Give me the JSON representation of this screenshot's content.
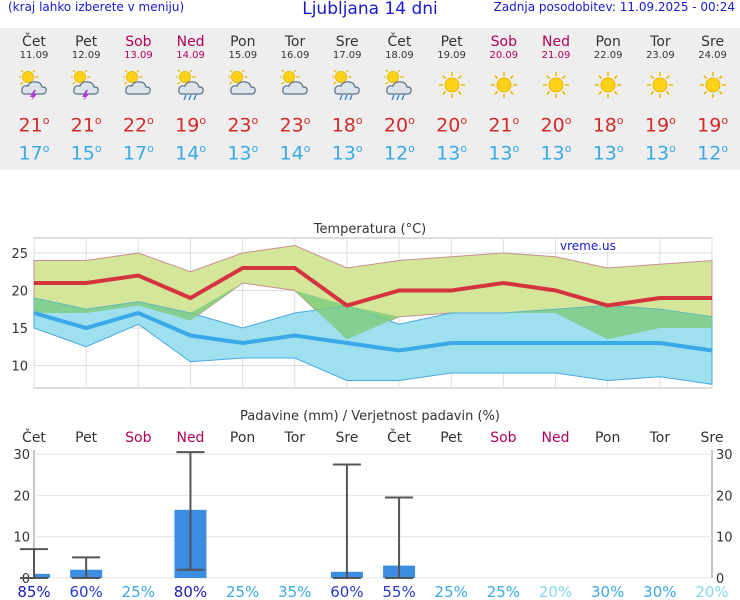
{
  "header": {
    "left": "(kraj lahko izberete v meniju)",
    "title": "Ljubljana 14 dni",
    "right": "Zadnja posodobitev: 11.09.2025 - 00:24"
  },
  "days": [
    {
      "name": "Čet",
      "date": "11.09",
      "icon": "thunderstorm-sun-icon",
      "tmax": "21",
      "tmin": "17",
      "weekend": false
    },
    {
      "name": "Pet",
      "date": "12.09",
      "icon": "thunderstorm-sun-icon",
      "tmax": "21",
      "tmin": "15",
      "weekend": false
    },
    {
      "name": "Sob",
      "date": "13.09",
      "icon": "partly-cloudy-icon",
      "tmax": "22",
      "tmin": "17",
      "weekend": true
    },
    {
      "name": "Ned",
      "date": "14.09",
      "icon": "rain-sun-icon",
      "tmax": "19",
      "tmin": "14",
      "weekend": true
    },
    {
      "name": "Pon",
      "date": "15.09",
      "icon": "partly-cloudy-icon",
      "tmax": "23",
      "tmin": "13",
      "weekend": false
    },
    {
      "name": "Tor",
      "date": "16.09",
      "icon": "partly-cloudy-icon",
      "tmax": "23",
      "tmin": "14",
      "weekend": false
    },
    {
      "name": "Sre",
      "date": "17.09",
      "icon": "rain-sun-icon",
      "tmax": "18",
      "tmin": "13",
      "weekend": false
    },
    {
      "name": "Čet",
      "date": "18.09",
      "icon": "rain-sun-icon",
      "tmax": "20",
      "tmin": "12",
      "weekend": false
    },
    {
      "name": "Pet",
      "date": "19.09",
      "icon": "sun-icon",
      "tmax": "20",
      "tmin": "13",
      "weekend": false
    },
    {
      "name": "Sob",
      "date": "20.09",
      "icon": "sun-icon",
      "tmax": "21",
      "tmin": "13",
      "weekend": true
    },
    {
      "name": "Ned",
      "date": "21.09",
      "icon": "sun-icon",
      "tmax": "20",
      "tmin": "13",
      "weekend": true
    },
    {
      "name": "Pon",
      "date": "22.09",
      "icon": "sun-icon",
      "tmax": "18",
      "tmin": "13",
      "weekend": false
    },
    {
      "name": "Tor",
      "date": "23.09",
      "icon": "sun-icon",
      "tmax": "19",
      "tmin": "13",
      "weekend": false
    },
    {
      "name": "Sre",
      "date": "24.09",
      "icon": "sun-icon",
      "tmax": "19",
      "tmin": "12",
      "weekend": false
    }
  ],
  "colors": {
    "tmax": "#d63341",
    "tmin": "#3aa9e8",
    "weekend": "#b0005a",
    "bar": "#3a8de0",
    "maxBand": "#d4e69a",
    "minBand": "#9fe0ef",
    "overlap": "#7ccc7a"
  },
  "chart_data": [
    {
      "type": "line",
      "title": "Temperatura (°C)",
      "watermark": "vreme.us",
      "ylim": [
        7,
        27
      ],
      "yticks": [
        "10",
        "15",
        "20",
        "25"
      ],
      "series": [
        {
          "name": "Tmax",
          "values": [
            21,
            21,
            22,
            19,
            23,
            23,
            18,
            20,
            20,
            21,
            20,
            18,
            19,
            19
          ]
        },
        {
          "name": "Tmin",
          "values": [
            17,
            15,
            17,
            14,
            13,
            14,
            13,
            12,
            13,
            13,
            13,
            13,
            13,
            12
          ]
        }
      ],
      "bands": [
        {
          "name": "Tmax range",
          "lower": [
            17,
            17,
            18,
            16,
            21,
            20,
            13.5,
            16.5,
            17,
            17,
            17,
            13.5,
            15,
            15
          ],
          "upper": [
            24,
            24,
            25,
            22.5,
            25,
            26,
            23,
            24,
            24.5,
            25,
            24.5,
            23,
            23.5,
            24
          ]
        },
        {
          "name": "Tmin range",
          "lower": [
            15,
            12.5,
            15.5,
            10.5,
            11,
            11,
            8,
            8,
            9,
            9,
            9,
            8,
            8.5,
            7.5
          ],
          "upper": [
            19,
            17.5,
            18.5,
            17,
            15,
            17,
            18,
            15.5,
            17,
            17,
            17.5,
            18,
            17.5,
            16.5
          ]
        }
      ]
    },
    {
      "type": "bar",
      "title": "Padavine (mm) / Verjetnost padavin (%)",
      "categories": [
        "Čet",
        "Pet",
        "Sob",
        "Ned",
        "Pon",
        "Tor",
        "Sre",
        "Čet",
        "Pet",
        "Sob",
        "Ned",
        "Pon",
        "Tor",
        "Sre"
      ],
      "weekend": [
        false,
        false,
        true,
        true,
        false,
        false,
        false,
        false,
        false,
        true,
        true,
        false,
        false,
        false
      ],
      "ylim": [
        0,
        31
      ],
      "yticks": [
        "0",
        "10",
        "20",
        "30"
      ],
      "values": [
        1.0,
        2.0,
        0,
        16.5,
        0,
        0,
        1.5,
        3.0,
        0,
        0,
        0,
        0,
        0,
        0
      ],
      "error_low": [
        0,
        0,
        0,
        2.0,
        0,
        0,
        0,
        0,
        0,
        0,
        0,
        0,
        0,
        0
      ],
      "error_high": [
        7.0,
        5.0,
        0,
        30.5,
        0,
        0,
        27.5,
        19.5,
        0,
        0,
        0,
        0,
        0,
        0
      ],
      "probabilities": [
        "85%",
        "60%",
        "25%",
        "80%",
        "25%",
        "35%",
        "60%",
        "55%",
        "25%",
        "25%",
        "20%",
        "30%",
        "30%",
        "20%"
      ],
      "probability_values": [
        85,
        60,
        25,
        80,
        25,
        35,
        60,
        55,
        25,
        25,
        20,
        30,
        30,
        20
      ]
    }
  ]
}
